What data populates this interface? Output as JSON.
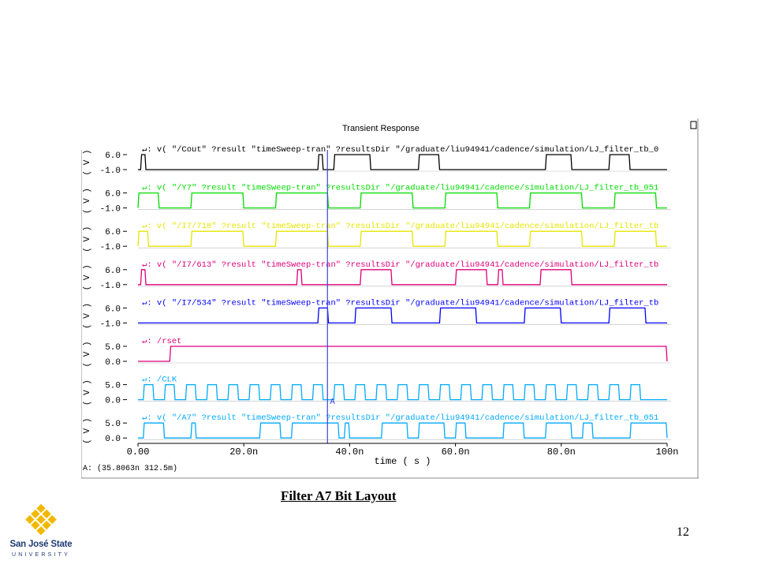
{
  "chart_data": {
    "type": "line",
    "title": "Transient Response",
    "xlabel": "time ( s )",
    "xlim": [
      0,
      100
    ],
    "x_ticks": [
      "0.00",
      "20.0n",
      "40.0n",
      "60.0n",
      "80.0n",
      "100n"
    ],
    "cursor": {
      "x": 35.8063,
      "label": "A",
      "readout": "A: (35.8063n 312.5m)"
    },
    "series": [
      {
        "name": "v( \"/Cout\" ?result \"timeSweep-tran\" ?resultsDir \"/graduate/liu94941/cadence/simulation/LJ_filter_tb_0",
        "color": "#000000",
        "unit": "( V )",
        "y_ticks": [
          "6.0",
          "-1.0"
        ],
        "ylim": [
          -1.0,
          6.0
        ],
        "pulses": [
          [
            0.5,
            1.5
          ],
          [
            34,
            35
          ],
          [
            37,
            44
          ],
          [
            53,
            57
          ],
          [
            77,
            82
          ],
          [
            89,
            93
          ]
        ],
        "high": 6.0,
        "low": -1.0
      },
      {
        "name": "v( \"/Y7\" ?result \"timeSweep-tran\" ?resultsDir \"/graduate/liu94941/cadence/simulation/LJ_filter_tb_051",
        "color": "#00dd00",
        "unit": "( V )",
        "y_ticks": [
          "6.0",
          "-1.0"
        ],
        "ylim": [
          -1.0,
          6.0
        ],
        "pulses": [
          [
            0,
            4
          ],
          [
            10,
            20
          ],
          [
            26,
            36
          ],
          [
            42,
            52
          ],
          [
            58,
            68
          ],
          [
            74,
            84
          ],
          [
            90,
            98
          ]
        ],
        "high": 6.0,
        "low": -1.0
      },
      {
        "name": "v( \"/I7/718\" ?result \"timeSweep-tran\" ?resultsDir \"/graduate/liu94941/cadence/simulation/LJ_filter_tb",
        "color": "#e6e600",
        "unit": "( V )",
        "y_ticks": [
          "6.0",
          "-1.0"
        ],
        "ylim": [
          -1.0,
          6.0
        ],
        "pulses": [
          [
            0,
            2
          ],
          [
            10,
            20
          ],
          [
            26,
            36
          ],
          [
            42,
            52
          ],
          [
            58,
            68
          ],
          [
            74,
            84
          ],
          [
            90,
            98
          ]
        ],
        "high": 6.0,
        "low": -1.0
      },
      {
        "name": "v( \"/I7/613\" ?result \"timeSweep-tran\" ?resultsDir \"/graduate/liu94941/cadence/simulation/LJ_filter_tb",
        "color": "#e0007a",
        "unit": "( V )",
        "y_ticks": [
          "6.0",
          "-1.0"
        ],
        "ylim": [
          -1.0,
          6.0
        ],
        "pulses": [
          [
            0.5,
            1.5
          ],
          [
            30,
            31
          ],
          [
            42,
            48
          ],
          [
            60,
            66
          ],
          [
            68,
            69
          ],
          [
            76,
            82
          ]
        ],
        "high": 6.0,
        "low": -1.0
      },
      {
        "name": "v( \"/I7/534\" ?result \"timeSweep-tran\" ?resultsDir \"/graduate/liu94941/cadence/simulation/LJ_filter_tb",
        "color": "#0000ff",
        "unit": "( V )",
        "y_ticks": [
          "6.0",
          "-1.0"
        ],
        "ylim": [
          -1.0,
          6.0
        ],
        "pulses": [
          [
            34,
            36
          ],
          [
            41,
            48
          ],
          [
            57,
            64
          ],
          [
            73,
            80
          ],
          [
            89,
            96
          ]
        ],
        "high": 6.0,
        "low": -1.0
      },
      {
        "name": "/rset",
        "color": "#e0007a",
        "unit": "( V )",
        "y_ticks": [
          "5.0",
          "0.0"
        ],
        "ylim": [
          0.0,
          5.0
        ],
        "pulses": [
          [
            6,
            100
          ]
        ],
        "high": 5.0,
        "low": 0.0
      },
      {
        "name": "/CLK",
        "color": "#00aaff",
        "unit": "( V )",
        "y_ticks": [
          "5.0",
          "0.0"
        ],
        "ylim": [
          0.0,
          5.0
        ],
        "pulses": [
          [
            1,
            3
          ],
          [
            5,
            7
          ],
          [
            9,
            11
          ],
          [
            13,
            15
          ],
          [
            17,
            19
          ],
          [
            21,
            23
          ],
          [
            25,
            27
          ],
          [
            29,
            31
          ],
          [
            33,
            35
          ],
          [
            37,
            39
          ],
          [
            41,
            43
          ],
          [
            45,
            47
          ],
          [
            49,
            51
          ],
          [
            53,
            55
          ],
          [
            57,
            59
          ],
          [
            61,
            63
          ],
          [
            65,
            67
          ],
          [
            69,
            71
          ],
          [
            73,
            75
          ],
          [
            77,
            79
          ],
          [
            81,
            83
          ],
          [
            85,
            87
          ],
          [
            89,
            91
          ],
          [
            93,
            95
          ]
        ],
        "high": 5.0,
        "low": 0.0
      },
      {
        "name": "v( \"/A7\" ?result \"timeSweep-tran\" ?resultsDir \"/graduate/liu94941/cadence/simulation/LJ_filter_tb_051",
        "color": "#00aaff",
        "unit": "( V )",
        "y_ticks": [
          "5.0",
          "0.0"
        ],
        "ylim": [
          0.0,
          5.0
        ],
        "pulses": [
          [
            1,
            5
          ],
          [
            10,
            11
          ],
          [
            23,
            27
          ],
          [
            29,
            38
          ],
          [
            39,
            40
          ],
          [
            46,
            51
          ],
          [
            53,
            58
          ],
          [
            60,
            62
          ],
          [
            69,
            73
          ],
          [
            77,
            82
          ],
          [
            84,
            86
          ],
          [
            93,
            100
          ]
        ],
        "high": 5.0,
        "low": 0.0
      }
    ]
  },
  "caption": "Filter A7 Bit Layout",
  "page_number": "12",
  "logo": {
    "line1": "San José State",
    "line2": "UNIVERSITY",
    "color": "#f2b800",
    "text_color": "#1f3b73"
  }
}
